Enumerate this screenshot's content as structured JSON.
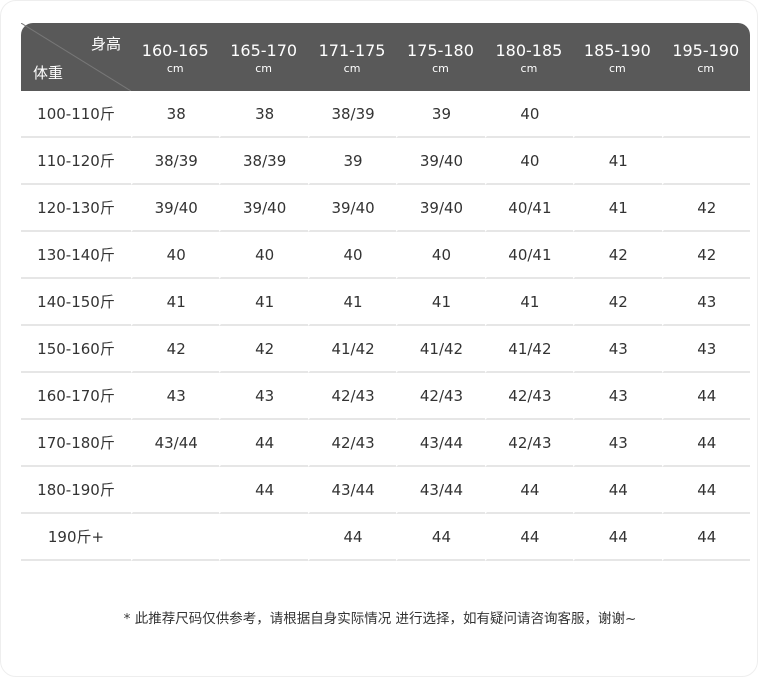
{
  "table": {
    "corner": {
      "top": "身高",
      "bottom": "体重"
    },
    "columns": [
      {
        "range": "160-165",
        "unit": "cm"
      },
      {
        "range": "165-170",
        "unit": "cm"
      },
      {
        "range": "171-175",
        "unit": "cm"
      },
      {
        "range": "175-180",
        "unit": "cm"
      },
      {
        "range": "180-185",
        "unit": "cm"
      },
      {
        "range": "185-190",
        "unit": "cm"
      },
      {
        "range": "195-190",
        "unit": "cm"
      }
    ],
    "rows": [
      {
        "label": "100-110斤",
        "cells": [
          "38",
          "38",
          "38/39",
          "39",
          "40",
          null,
          null
        ]
      },
      {
        "label": "110-120斤",
        "cells": [
          "38/39",
          "38/39",
          "39",
          "39/40",
          "40",
          "41",
          null
        ]
      },
      {
        "label": "120-130斤",
        "cells": [
          "39/40",
          "39/40",
          "39/40",
          "39/40",
          "40/41",
          "41",
          "42"
        ]
      },
      {
        "label": "130-140斤",
        "cells": [
          "40",
          "40",
          "40",
          "40",
          "40/41",
          "42",
          "42"
        ]
      },
      {
        "label": "140-150斤",
        "cells": [
          "41",
          "41",
          "41",
          "41",
          "41",
          "42",
          "43"
        ]
      },
      {
        "label": "150-160斤",
        "cells": [
          "42",
          "42",
          "41/42",
          "41/42",
          "41/42",
          "43",
          "43"
        ]
      },
      {
        "label": "160-170斤",
        "cells": [
          "43",
          "43",
          "42/43",
          "42/43",
          "42/43",
          "43",
          "44"
        ]
      },
      {
        "label": "170-180斤",
        "cells": [
          "43/44",
          "44",
          "42/43",
          "43/44",
          "42/43",
          "43",
          "44"
        ]
      },
      {
        "label": "180-190斤",
        "cells": [
          null,
          "44",
          "43/44",
          "43/44",
          "44",
          "44",
          "44"
        ]
      },
      {
        "label": "190斤+",
        "cells": [
          null,
          null,
          "44",
          "44",
          "44",
          "44",
          "44"
        ]
      }
    ]
  },
  "footnote": "* 此推荐尺码仅供参考，请根据自身实际情况 进行选择，如有疑问请咨询客服，谢谢~"
}
